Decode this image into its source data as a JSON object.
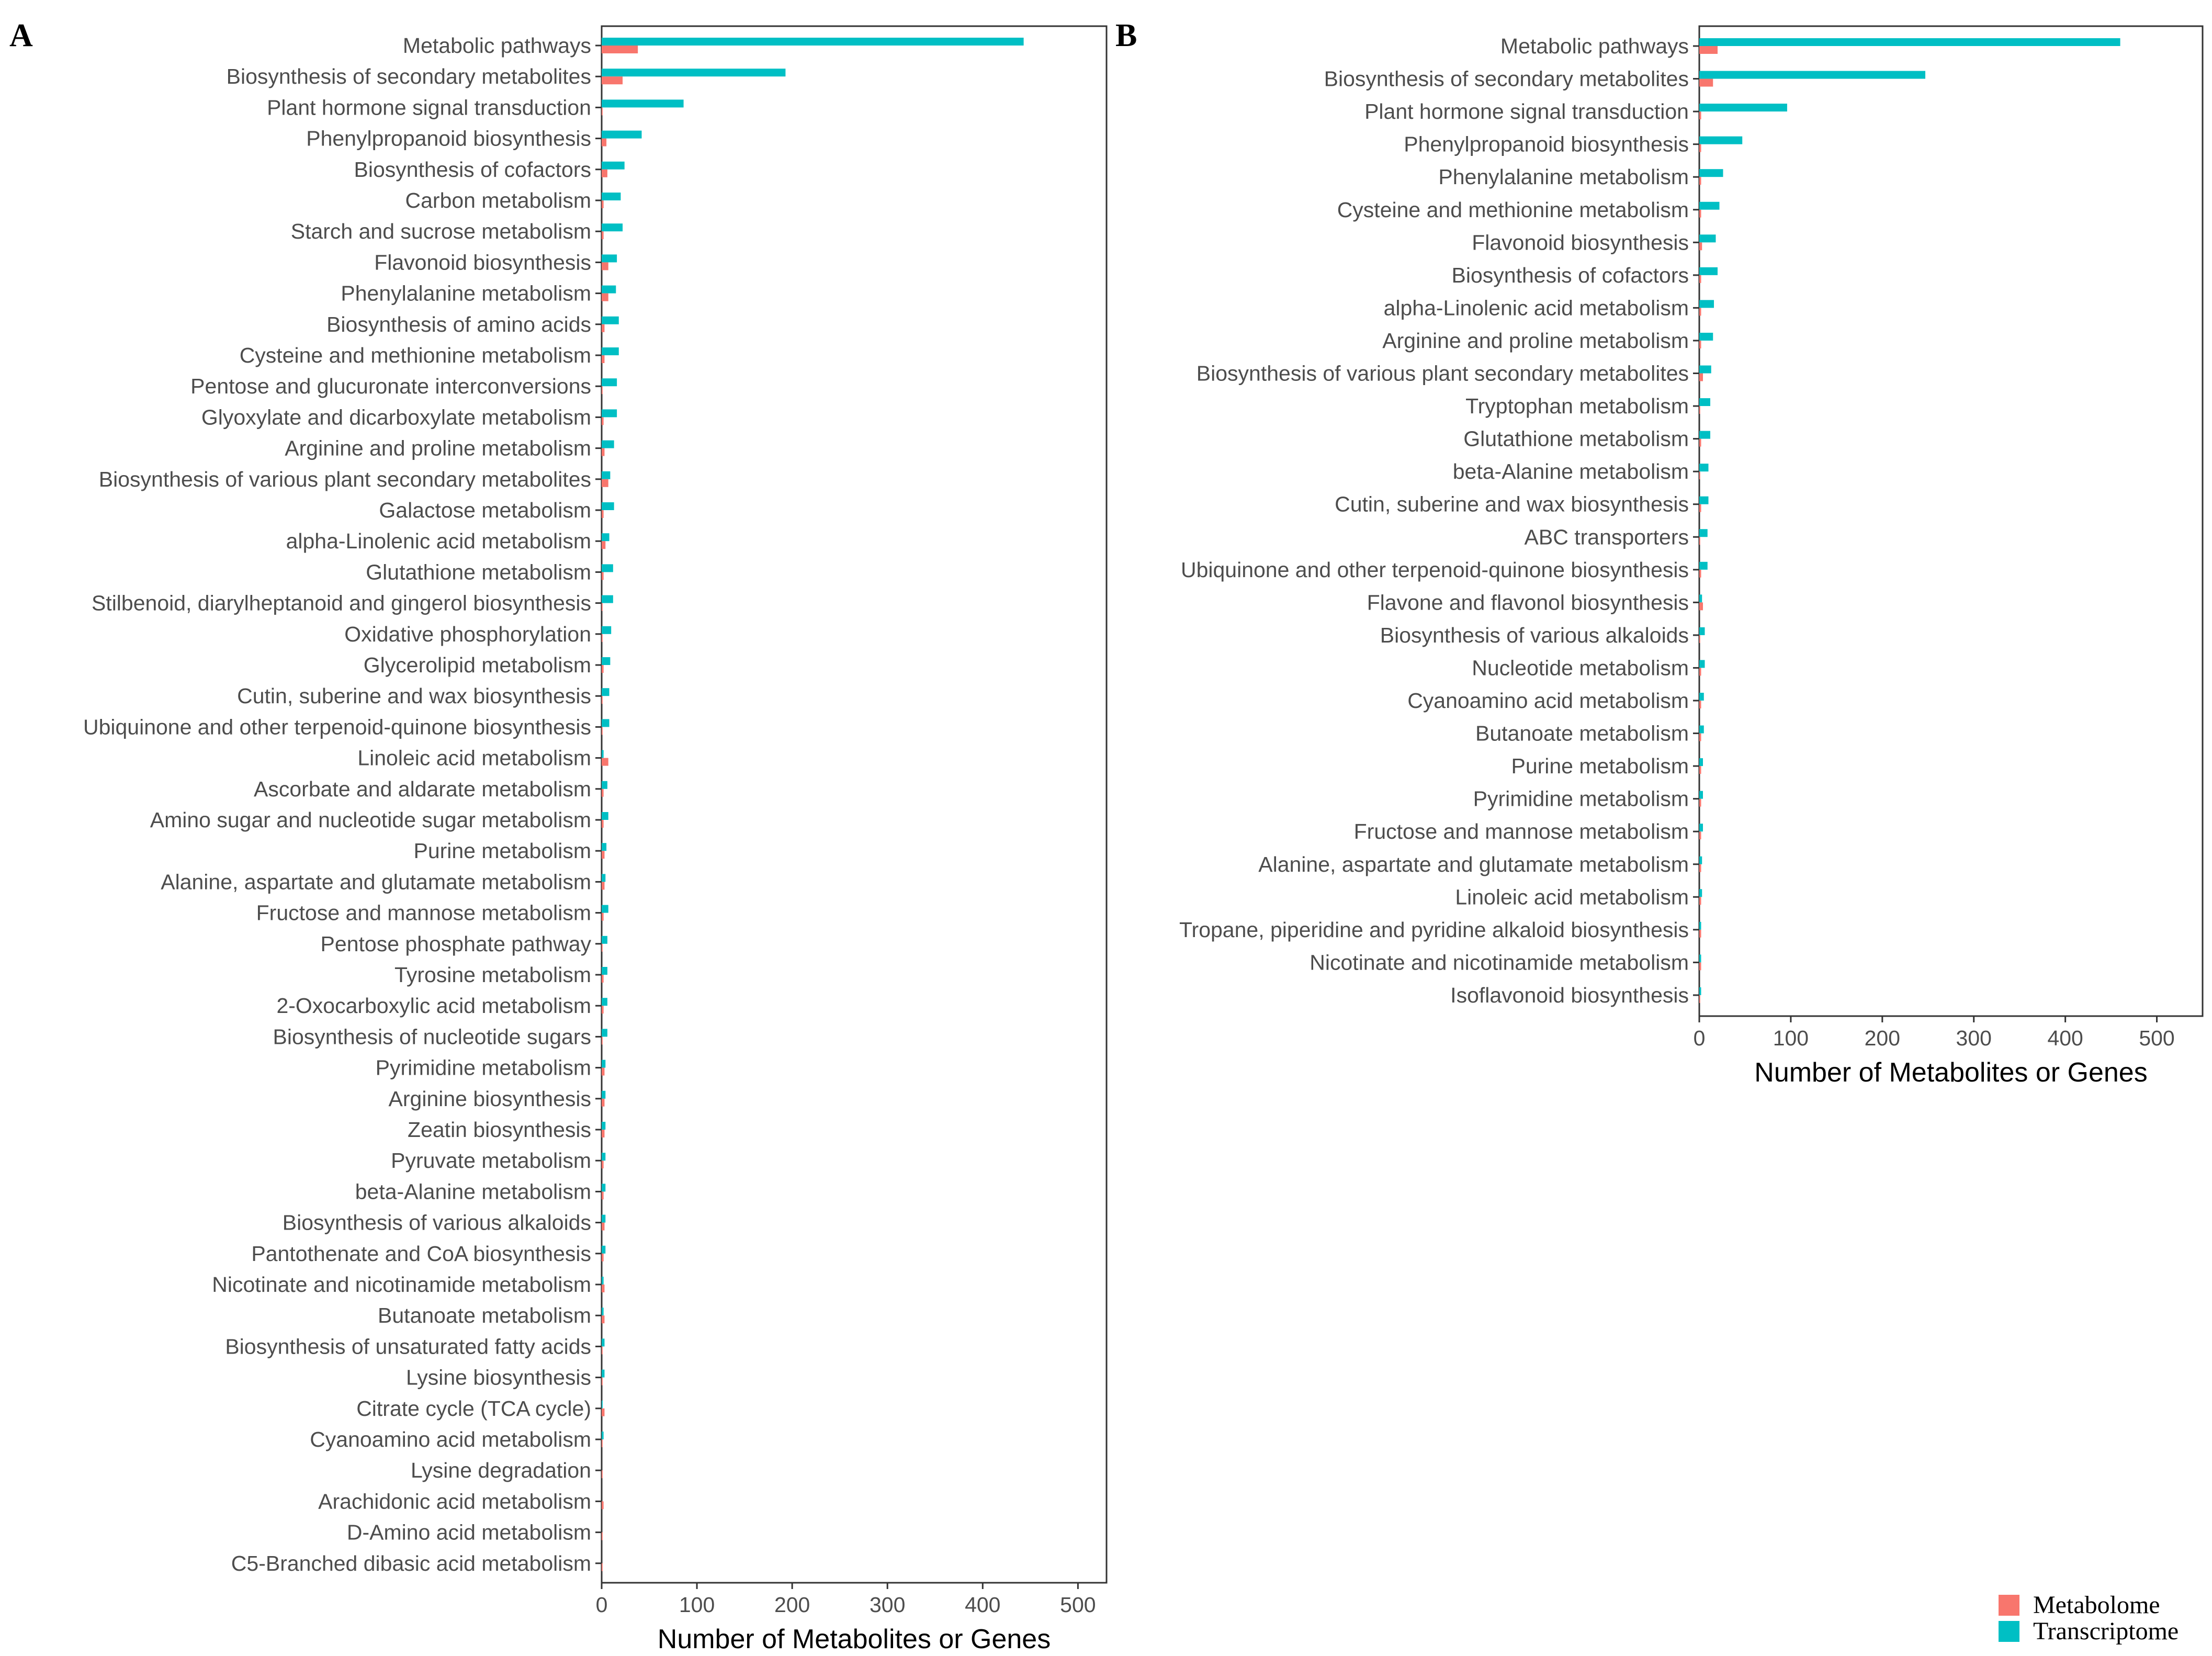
{
  "legend": {
    "items": [
      {
        "label": "Metabolome",
        "color": "#F8766D"
      },
      {
        "label": "Transcriptome",
        "color": "#00BFC4"
      }
    ]
  },
  "chart_data": [
    {
      "panel": "A",
      "type": "bar",
      "orientation": "horizontal",
      "xlabel": "Number of Metabolites or Genes",
      "xlim": [
        0,
        530
      ],
      "xticks": [
        0,
        100,
        200,
        300,
        400,
        500
      ],
      "categories": [
        "Metabolic pathways",
        "Biosynthesis of secondary metabolites",
        "Plant hormone signal transduction",
        "Phenylpropanoid biosynthesis",
        "Biosynthesis of cofactors",
        "Carbon metabolism",
        "Starch and sucrose metabolism",
        "Flavonoid biosynthesis",
        "Phenylalanine metabolism",
        "Biosynthesis of amino acids",
        "Cysteine and methionine metabolism",
        "Pentose and glucuronate interconversions",
        "Glyoxylate and dicarboxylate metabolism",
        "Arginine and proline metabolism",
        "Biosynthesis of various plant secondary metabolites",
        "Galactose metabolism",
        "alpha-Linolenic acid metabolism",
        "Glutathione metabolism",
        "Stilbenoid, diarylheptanoid and gingerol biosynthesis",
        "Oxidative phosphorylation",
        "Glycerolipid metabolism",
        "Cutin, suberine and wax biosynthesis",
        "Ubiquinone and other terpenoid-quinone biosynthesis",
        "Linoleic acid metabolism",
        "Ascorbate and aldarate metabolism",
        "Amino sugar and nucleotide sugar metabolism",
        "Purine metabolism",
        "Alanine, aspartate and glutamate metabolism",
        "Fructose and mannose metabolism",
        "Pentose phosphate pathway",
        "Tyrosine metabolism",
        "2-Oxocarboxylic acid metabolism",
        "Biosynthesis of nucleotide sugars",
        "Pyrimidine metabolism",
        "Arginine biosynthesis",
        "Zeatin biosynthesis",
        "Pyruvate metabolism",
        "beta-Alanine metabolism",
        "Biosynthesis of various alkaloids",
        "Pantothenate and CoA biosynthesis",
        "Nicotinate and nicotinamide metabolism",
        "Butanoate metabolism",
        "Biosynthesis of unsaturated fatty acids",
        "Lysine biosynthesis",
        "Citrate cycle (TCA cycle)",
        "Cyanoamino acid metabolism",
        "Lysine degradation",
        "Arachidonic acid metabolism",
        "D-Amino acid metabolism",
        "C5-Branched dibasic acid metabolism"
      ],
      "series": [
        {
          "name": "Metabolome",
          "values": [
            38,
            22,
            1,
            5,
            6,
            2,
            2,
            7,
            7,
            3,
            3,
            1,
            2,
            3,
            7,
            2,
            4,
            2,
            1,
            1,
            2,
            1,
            1,
            7,
            2,
            2,
            3,
            3,
            2,
            1,
            2,
            2,
            1,
            3,
            3,
            3,
            2,
            2,
            3,
            2,
            3,
            3,
            1,
            1,
            3,
            1,
            1,
            2,
            1,
            1
          ]
        },
        {
          "name": "Transcriptome",
          "values": [
            443,
            193,
            86,
            42,
            24,
            20,
            22,
            16,
            15,
            18,
            18,
            16,
            16,
            13,
            9,
            13,
            8,
            12,
            12,
            10,
            9,
            8,
            8,
            2,
            6,
            7,
            5,
            4,
            7,
            6,
            6,
            6,
            6,
            4,
            4,
            4,
            4,
            4,
            4,
            4,
            2,
            2,
            3,
            3,
            1,
            2,
            0,
            0,
            0,
            0
          ]
        }
      ]
    },
    {
      "panel": "B",
      "type": "bar",
      "orientation": "horizontal",
      "xlabel": "Number of Metabolites or Genes",
      "xlim": [
        0,
        550
      ],
      "xticks": [
        0,
        100,
        200,
        300,
        400,
        500
      ],
      "categories": [
        "Metabolic pathways",
        "Biosynthesis of secondary metabolites",
        "Plant hormone signal transduction",
        "Phenylpropanoid biosynthesis",
        "Phenylalanine metabolism",
        "Cysteine and methionine metabolism",
        "Flavonoid biosynthesis",
        "Biosynthesis of cofactors",
        "alpha-Linolenic acid metabolism",
        "Arginine and proline metabolism",
        "Biosynthesis of various plant secondary metabolites",
        "Tryptophan metabolism",
        "Glutathione metabolism",
        "beta-Alanine metabolism",
        "Cutin, suberine and wax biosynthesis",
        "ABC transporters",
        "Ubiquinone and other terpenoid-quinone biosynthesis",
        "Flavone and flavonol biosynthesis",
        "Biosynthesis of various alkaloids",
        "Nucleotide metabolism",
        "Cyanoamino acid metabolism",
        "Butanoate metabolism",
        "Purine metabolism",
        "Pyrimidine metabolism",
        "Fructose and mannose metabolism",
        "Alanine, aspartate and glutamate metabolism",
        "Linoleic acid metabolism",
        "Tropane, piperidine and pyridine alkaloid biosynthesis",
        "Nicotinate and nicotinamide metabolism",
        "Isoflavonoid biosynthesis"
      ],
      "series": [
        {
          "name": "Metabolome",
          "values": [
            20,
            15,
            2,
            2,
            2,
            2,
            3,
            2,
            2,
            2,
            4,
            1,
            2,
            1,
            2,
            1,
            2,
            4,
            1,
            2,
            2,
            2,
            2,
            2,
            2,
            2,
            2,
            2,
            2,
            1
          ]
        },
        {
          "name": "Transcriptome",
          "values": [
            460,
            247,
            96,
            47,
            26,
            22,
            18,
            20,
            16,
            15,
            13,
            12,
            12,
            10,
            10,
            9,
            9,
            3,
            6,
            6,
            5,
            5,
            4,
            4,
            4,
            3,
            3,
            2,
            2,
            2
          ]
        }
      ]
    }
  ]
}
